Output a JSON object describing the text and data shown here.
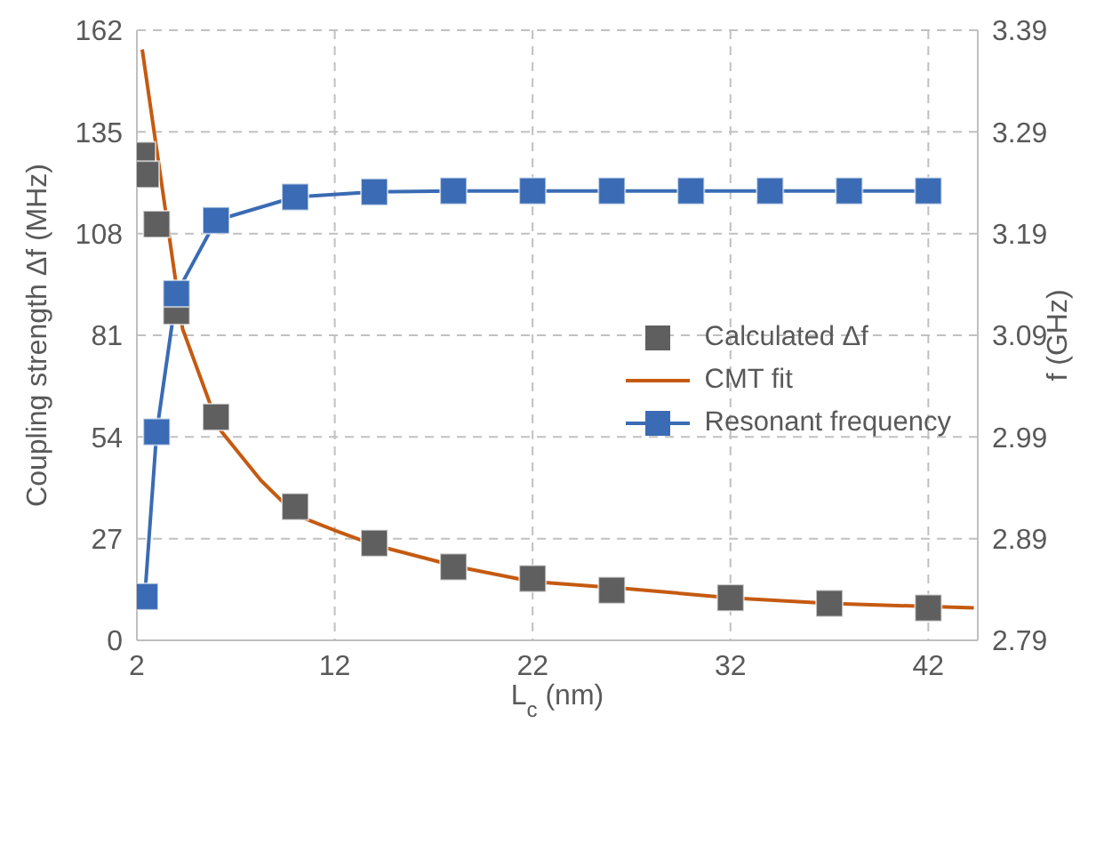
{
  "chart_data": {
    "type": "line",
    "xlabel": "L$_{c}$ (nm)",
    "ylabel": "Coupling strength Δf (MHz)",
    "y2label": "f (GHz)",
    "xlim": [
      2,
      44.5
    ],
    "xticks": [
      2,
      12,
      22,
      32,
      42
    ],
    "ylim": [
      0,
      162
    ],
    "yticks": [
      0,
      27,
      54,
      81,
      108,
      135,
      162
    ],
    "y2lim": [
      2.79,
      3.39
    ],
    "y2ticks": [
      2.79,
      2.89,
      2.99,
      3.09,
      3.19,
      3.29,
      3.39
    ],
    "grid": true,
    "legend": "right",
    "line_style": "solid",
    "series": [
      {
        "name": "Calculated Δf",
        "type": "scatter",
        "marker": "square",
        "color": "#5f5f5f",
        "x": [
          2.27,
          2.45,
          3,
          4,
          6,
          10,
          14,
          18,
          22,
          26,
          32,
          37,
          42
        ],
        "values": [
          128.8,
          123.7,
          110.5,
          87.4,
          59.3,
          35.5,
          25.8,
          19.5,
          16.4,
          13.3,
          11.3,
          9.8,
          8.6
        ]
      },
      {
        "name": "CMT fit",
        "marker": "none",
        "color": "#c55a11",
        "x": [
          2.27,
          4.31,
          6.16,
          8.26,
          10.06,
          12.15,
          13.95,
          18.26,
          22,
          26.8,
          32,
          37,
          44.3
        ],
        "values": [
          156.9,
          82.7,
          56.2,
          42.5,
          33.2,
          28.9,
          25.4,
          19.5,
          15.6,
          13.7,
          11.3,
          9.8,
          8.6
        ]
      },
      {
        "name": "Resonant frequency",
        "marker": "square",
        "axis": "y2",
        "color": "#3a6bb4",
        "x": [
          2.4,
          3,
          4,
          6,
          10,
          14,
          18,
          22,
          26,
          30,
          34,
          38,
          42
        ],
        "values": [
          2.833,
          2.995,
          3.131,
          3.203,
          3.226,
          3.231,
          3.232,
          3.232,
          3.232,
          3.232,
          3.232,
          3.232,
          3.232
        ]
      }
    ]
  }
}
